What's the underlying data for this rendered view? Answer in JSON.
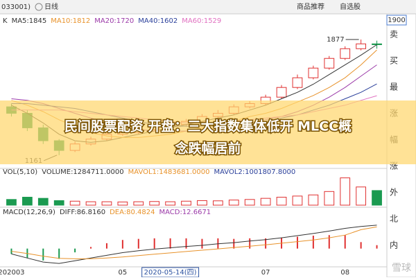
{
  "header": {
    "code": "033001)",
    "period": "日线",
    "links": [
      "商品推荐",
      "自选股"
    ]
  },
  "side_panel": {
    "price_box": "1900",
    "labels": [
      "卖",
      "买",
      "最",
      "涨",
      "幅",
      "涨",
      "外",
      "北",
      "内"
    ]
  },
  "banner": {
    "lines": [
      "民间股票配资 开盘：三大指数集体低开 MLCC概",
      "念跌幅居前"
    ]
  },
  "watermark": "雪球",
  "chart_data": [
    {
      "type": "candlestick",
      "title": "K",
      "categories": [
        "202003",
        null,
        null,
        null,
        null,
        null,
        null,
        "05",
        null,
        null,
        "2020-05-14(四)",
        null,
        null,
        null,
        null,
        null,
        "07",
        null,
        null,
        null,
        null,
        "08",
        null,
        null
      ],
      "open": [
        1460,
        1420,
        1330,
        1250,
        1190,
        1230,
        1260,
        1290,
        1300,
        1320,
        1340,
        1350,
        1370,
        1400,
        1420,
        1460,
        1480,
        1520,
        1580,
        1640,
        1700,
        1760,
        1820,
        1850
      ],
      "high": [
        1480,
        1440,
        1350,
        1260,
        1245,
        1275,
        1300,
        1315,
        1335,
        1355,
        1365,
        1385,
        1415,
        1440,
        1475,
        1495,
        1535,
        1595,
        1660,
        1715,
        1775,
        1835,
        1877,
        1870
      ],
      "low": [
        1400,
        1310,
        1230,
        1161,
        1180,
        1220,
        1250,
        1280,
        1290,
        1310,
        1330,
        1340,
        1360,
        1390,
        1410,
        1450,
        1470,
        1510,
        1570,
        1630,
        1690,
        1750,
        1810,
        1820
      ],
      "close": [
        1420,
        1330,
        1250,
        1190,
        1230,
        1260,
        1290,
        1300,
        1320,
        1340,
        1350,
        1370,
        1400,
        1420,
        1460,
        1480,
        1520,
        1580,
        1640,
        1700,
        1760,
        1820,
        1850,
        1845
      ],
      "up_color": "#e03030",
      "down_color": "#1a9a50",
      "series": [
        {
          "name": "MA5:1845",
          "color": "#333333",
          "values": [
            1470,
            1420,
            1360,
            1290,
            1250,
            1240,
            1250,
            1270,
            1290,
            1310,
            1330,
            1350,
            1370,
            1390,
            1410,
            1440,
            1470,
            1510,
            1550,
            1600,
            1660,
            1720,
            1780,
            1845
          ]
        },
        {
          "name": "MA10:1812",
          "color": "#e8922a",
          "values": [
            1500,
            1470,
            1430,
            1380,
            1340,
            1300,
            1280,
            1270,
            1270,
            1280,
            1290,
            1310,
            1330,
            1350,
            1370,
            1400,
            1420,
            1450,
            1490,
            1530,
            1580,
            1640,
            1720,
            1812
          ]
        },
        {
          "name": "MA20:1720",
          "color": "#9b3aa8",
          "values": [
            1510,
            1500,
            1480,
            1450,
            1420,
            1390,
            1360,
            1340,
            1320,
            1310,
            1310,
            1310,
            1320,
            1330,
            1340,
            1360,
            1380,
            1400,
            1430,
            1470,
            1520,
            1580,
            1650,
            1720
          ]
        },
        {
          "name": "MA40:1602",
          "color": "#2a3f9a",
          "values": [
            1480,
            1480,
            1470,
            1460,
            1450,
            1430,
            1410,
            1390,
            1370,
            1350,
            1340,
            1340,
            1340,
            1340,
            1350,
            1360,
            1370,
            1390,
            1410,
            1440,
            1470,
            1510,
            1550,
            1602
          ]
        },
        {
          "name": "MA60:1529",
          "color": "#e070c0",
          "values": [
            1440,
            1440,
            1440,
            1440,
            1430,
            1420,
            1410,
            1400,
            1390,
            1380,
            1370,
            1360,
            1360,
            1360,
            1370,
            1380,
            1390,
            1400,
            1410,
            1430,
            1450,
            1470,
            1500,
            1529
          ]
        }
      ],
      "ylim": [
        1100,
        1950
      ]
    },
    {
      "type": "volume",
      "legend": [
        "VOL(5,10)",
        "VOLUME:1284711.0000",
        "MAVOL1:1483681.0000",
        "MAVOL2:1001807.8000"
      ],
      "legend_colors": [
        "#333333",
        "#333333",
        "#e8922a",
        "#2a3f9a"
      ],
      "values": [
        500000,
        700000,
        600000,
        400000,
        350000,
        300000,
        300000,
        280000,
        300000,
        320000,
        300000,
        350000,
        400000,
        380000,
        450000,
        500000,
        600000,
        700000,
        800000,
        900000,
        1200000,
        2400000,
        1600000,
        1284711
      ],
      "ylim": [
        0,
        2500000
      ]
    },
    {
      "type": "macd",
      "legend": [
        "MACD(12,26,9)",
        "DIFF:86.8160",
        "DEA:80.4824",
        "MACD:12.6671"
      ],
      "legend_colors": [
        "#333333",
        "#333333",
        "#e8922a",
        "#9b3aa8"
      ],
      "series": [
        {
          "name": "DIFF",
          "color": "#333333",
          "values": [
            -20,
            -35,
            -50,
            -55,
            -45,
            -35,
            -25,
            -15,
            -8,
            -2,
            3,
            8,
            12,
            18,
            22,
            28,
            33,
            40,
            48,
            56,
            65,
            75,
            82,
            86.816
          ]
        },
        {
          "name": "DEA",
          "color": "#e8922a",
          "values": [
            -10,
            -18,
            -28,
            -36,
            -38,
            -38,
            -35,
            -31,
            -26,
            -21,
            -16,
            -11,
            -6,
            -1,
            4,
            9,
            14,
            20,
            26,
            32,
            40,
            50,
            70,
            80.4824
          ]
        }
      ],
      "values": [
        -20,
        -34,
        -44,
        -38,
        -14,
        6,
        20,
        32,
        36,
        38,
        38,
        38,
        36,
        38,
        36,
        38,
        38,
        40,
        44,
        48,
        50,
        50,
        24,
        12.6671
      ],
      "ylim": [
        -60,
        120
      ]
    }
  ]
}
